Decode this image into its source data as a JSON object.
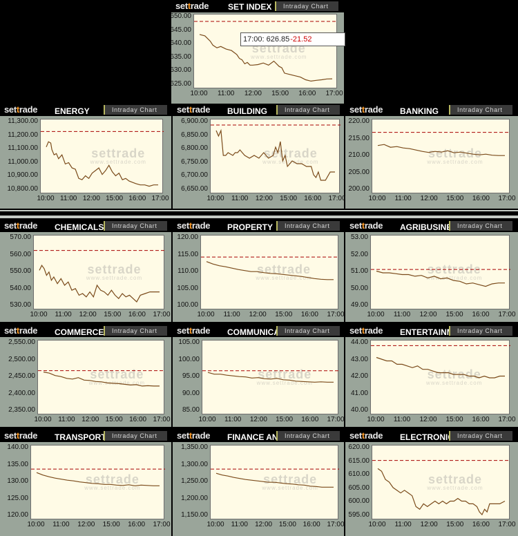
{
  "brand": {
    "prefix": "set",
    "accent": "t",
    "suffix": "rade"
  },
  "intraday_label": "Intraday Chart",
  "watermark": {
    "logo": "settrade",
    "site": "www.settrade.com"
  },
  "colors": {
    "line": "#7a4a1a",
    "ref": "#a80000",
    "accent": "#ff9d2a"
  },
  "tooltip": {
    "time": "17:00:",
    "value": "626.85",
    "change": "-21.52"
  },
  "charts": [
    {
      "id": "set-index",
      "title": "SET INDEX",
      "yticks": [
        "650.00",
        "645.00",
        "640.00",
        "635.00",
        "630.00",
        "625.00"
      ],
      "xticks": [
        "10:00",
        "11:00",
        "12:00",
        "15:00",
        "16:00",
        "17:00"
      ],
      "chart_data": {
        "type": "line",
        "ylim": [
          623,
          651
        ],
        "ref": 648.4,
        "x": [
          0,
          0.04,
          0.08,
          0.1,
          0.13,
          0.16,
          0.2,
          0.24,
          0.28,
          0.3,
          0.32,
          0.34,
          0.36,
          0.38,
          0.4,
          0.44,
          0.48,
          0.52,
          0.56,
          0.6,
          0.62,
          0.64,
          0.68,
          0.72,
          0.76,
          0.8,
          0.84,
          0.88,
          0.92,
          0.96,
          1
        ],
        "y": [
          643.5,
          643,
          641,
          639.5,
          638.5,
          639,
          638,
          637.5,
          636,
          634.5,
          634,
          632.5,
          633,
          632,
          632,
          632.2,
          632.8,
          632,
          633.5,
          631.5,
          631,
          629,
          628.5,
          628,
          627.5,
          626.5,
          626,
          626.3,
          626.5,
          626.8,
          626.85
        ]
      }
    },
    {
      "id": "energy",
      "title": "ENERGY",
      "yticks": [
        "11,300.00",
        "11,200.00",
        "11,100.00",
        "11,000.00",
        "10,900.00",
        "10,800.00"
      ],
      "xticks": [
        "10:00",
        "11:00",
        "12:00",
        "15:00",
        "16:00",
        "17:00"
      ],
      "chart_data": {
        "type": "line",
        "ylim": [
          10760,
          11330
        ],
        "ref": 11238,
        "x": [
          0,
          0.02,
          0.04,
          0.05,
          0.07,
          0.09,
          0.11,
          0.14,
          0.17,
          0.2,
          0.23,
          0.26,
          0.29,
          0.32,
          0.35,
          0.38,
          0.41,
          0.44,
          0.47,
          0.5,
          0.53,
          0.56,
          0.59,
          0.62,
          0.65,
          0.68,
          0.71,
          0.74,
          0.77,
          0.8,
          0.84,
          0.88,
          0.92,
          0.96,
          1
        ],
        "y": [
          11120,
          11160,
          11150,
          11100,
          11060,
          11070,
          11030,
          11060,
          10990,
          11000,
          10960,
          10950,
          10880,
          10870,
          10900,
          10880,
          10920,
          10940,
          10960,
          10910,
          10940,
          10980,
          10930,
          10900,
          10920,
          10870,
          10880,
          10860,
          10850,
          10840,
          10830,
          10830,
          10820,
          10830,
          10830
        ]
      }
    },
    {
      "id": "building",
      "title": "BUILDING",
      "yticks": [
        "6,900.00",
        "6,850.00",
        "6,800.00",
        "6,750.00",
        "6,700.00",
        "6,650.00"
      ],
      "xticks": [
        "10:00",
        "11:00",
        "12:00",
        "15:00",
        "16:00",
        "17:00"
      ],
      "chart_data": {
        "type": "line",
        "ylim": [
          6640,
          6910
        ],
        "ref": 6890,
        "x": [
          0,
          0.02,
          0.04,
          0.06,
          0.08,
          0.1,
          0.12,
          0.14,
          0.16,
          0.18,
          0.2,
          0.22,
          0.24,
          0.28,
          0.32,
          0.36,
          0.4,
          0.44,
          0.48,
          0.5,
          0.52,
          0.54,
          0.56,
          0.58,
          0.6,
          0.64,
          0.68,
          0.72,
          0.76,
          0.8,
          0.82,
          0.84,
          0.86,
          0.88,
          0.92,
          0.96,
          1
        ],
        "y": [
          6870,
          6850,
          6870,
          6780,
          6780,
          6790,
          6785,
          6780,
          6790,
          6790,
          6800,
          6790,
          6780,
          6770,
          6780,
          6770,
          6790,
          6770,
          6780,
          6810,
          6790,
          6830,
          6760,
          6780,
          6740,
          6760,
          6750,
          6750,
          6740,
          6740,
          6710,
          6700,
          6720,
          6690,
          6690,
          6720,
          6720
        ]
      }
    },
    {
      "id": "banking",
      "title": "BANKING",
      "yticks": [
        "220.00",
        "215.00",
        "210.00",
        "205.00",
        "200.00"
      ],
      "xticks": [
        "10:00",
        "11:00",
        "12:00",
        "15:00",
        "16:00",
        "17:00"
      ],
      "chart_data": {
        "type": "line",
        "ylim": [
          199.5,
          221
        ],
        "ref": 217.3,
        "x": [
          0,
          0.05,
          0.1,
          0.15,
          0.2,
          0.25,
          0.3,
          0.35,
          0.4,
          0.45,
          0.5,
          0.55,
          0.6,
          0.65,
          0.7,
          0.75,
          0.8,
          0.85,
          0.9,
          0.95,
          1
        ],
        "y": [
          213.5,
          213.8,
          213,
          213.2,
          212.8,
          212.6,
          212.2,
          211.8,
          211.5,
          211.8,
          211.6,
          212,
          211.4,
          211.6,
          211.3,
          211.0,
          210.8,
          211.0,
          210.7,
          210.6,
          210.6
        ]
      }
    },
    {
      "id": "chemicals",
      "title": "CHEMICALS",
      "yticks": [
        "570.00",
        "560.00",
        "550.00",
        "540.00",
        "530.00"
      ],
      "xticks": [
        "10:00",
        "11:00",
        "12:00",
        "15:00",
        "16:00",
        "17:00"
      ],
      "chart_data": {
        "type": "line",
        "ylim": [
          528,
          573
        ],
        "ref": 564,
        "x": [
          0,
          0.02,
          0.04,
          0.06,
          0.08,
          0.1,
          0.12,
          0.15,
          0.18,
          0.21,
          0.24,
          0.27,
          0.3,
          0.33,
          0.36,
          0.39,
          0.42,
          0.45,
          0.48,
          0.51,
          0.54,
          0.57,
          0.6,
          0.63,
          0.66,
          0.69,
          0.72,
          0.75,
          0.78,
          0.81,
          0.84,
          0.88,
          0.92,
          0.96,
          1
        ],
        "y": [
          552,
          555,
          553,
          549,
          551,
          546,
          548,
          544,
          547,
          543,
          545,
          540,
          541,
          537,
          538,
          536,
          539,
          536,
          543,
          540,
          539,
          537,
          540,
          537,
          535,
          538,
          536,
          537,
          535,
          533,
          537,
          538,
          539,
          539,
          539
        ]
      }
    },
    {
      "id": "property",
      "title": "PROPERTY",
      "yticks": [
        "120.00",
        "115.00",
        "110.00",
        "105.00",
        "100.00"
      ],
      "xticks": [
        "10:00",
        "11:00",
        "12:00",
        "15:00",
        "16:00",
        "17:00"
      ],
      "chart_data": {
        "type": "line",
        "ylim": [
          99.5,
          121
        ],
        "ref": 114.8,
        "x": [
          0,
          0.05,
          0.1,
          0.15,
          0.2,
          0.25,
          0.3,
          0.35,
          0.4,
          0.45,
          0.5,
          0.55,
          0.6,
          0.65,
          0.7,
          0.75,
          0.8,
          0.85,
          0.9,
          0.95,
          1
        ],
        "y": [
          113.5,
          112.8,
          112.3,
          112,
          111.6,
          111.2,
          110.9,
          110.6,
          110.6,
          110.3,
          110.1,
          110,
          109.8,
          109.6,
          109.4,
          109.2,
          108.9,
          108.6,
          108.4,
          108.3,
          108.3
        ]
      }
    },
    {
      "id": "agribusiness",
      "title": "AGRIBUSINESS",
      "yticks": [
        "53.00",
        "52.00",
        "51.00",
        "50.00",
        "49.00"
      ],
      "xticks": [
        "10:00",
        "11:00",
        "12:00",
        "15:00",
        "16:00",
        "17:00"
      ],
      "chart_data": {
        "type": "line",
        "ylim": [
          48.8,
          53.2
        ],
        "ref": 51.2,
        "x": [
          0,
          0.05,
          0.1,
          0.15,
          0.2,
          0.25,
          0.3,
          0.35,
          0.4,
          0.45,
          0.5,
          0.55,
          0.6,
          0.65,
          0.7,
          0.75,
          0.8,
          0.85,
          0.9,
          0.95,
          1
        ],
        "y": [
          51.1,
          51,
          51,
          50.95,
          50.9,
          50.9,
          50.8,
          50.85,
          50.7,
          50.8,
          50.65,
          50.7,
          50.55,
          50.5,
          50.35,
          50.4,
          50.3,
          50.2,
          50.35,
          50.4,
          50.4
        ]
      }
    },
    {
      "id": "commerce",
      "title": "COMMERCE",
      "yticks": [
        "2,550.00",
        "2,500.00",
        "2,450.00",
        "2,400.00",
        "2,350.00"
      ],
      "xticks": [
        "10:00",
        "11:00",
        "12:00",
        "15:00",
        "16:00",
        "17:00"
      ],
      "chart_data": {
        "type": "line",
        "ylim": [
          2345,
          2558
        ],
        "ref": 2472,
        "x": [
          0,
          0.05,
          0.1,
          0.15,
          0.2,
          0.25,
          0.3,
          0.35,
          0.4,
          0.45,
          0.5,
          0.55,
          0.6,
          0.65,
          0.7,
          0.75,
          0.8,
          0.85,
          0.9,
          0.95,
          1
        ],
        "y": [
          2468,
          2465,
          2458,
          2455,
          2450,
          2448,
          2452,
          2445,
          2444,
          2441,
          2440,
          2437,
          2436,
          2435,
          2433,
          2431,
          2432,
          2428,
          2429,
          2428,
          2428
        ]
      }
    },
    {
      "id": "communication",
      "title": "COMMUNICATION",
      "yticks": [
        "105.00",
        "100.00",
        "95.00",
        "90.00",
        "85.00"
      ],
      "xticks": [
        "10:00",
        "11:00",
        "12:00",
        "15:00",
        "16:00",
        "17:00"
      ],
      "chart_data": {
        "type": "line",
        "ylim": [
          84.5,
          106
        ],
        "ref": 97.3,
        "x": [
          0,
          0.05,
          0.1,
          0.15,
          0.2,
          0.25,
          0.3,
          0.35,
          0.4,
          0.45,
          0.5,
          0.55,
          0.6,
          0.65,
          0.7,
          0.75,
          0.8,
          0.85,
          0.9,
          0.95,
          1
        ],
        "y": [
          96.8,
          96.3,
          96.3,
          96,
          95.8,
          95.6,
          95.5,
          95.2,
          95.3,
          95,
          94.9,
          95.1,
          94.7,
          94.6,
          94.3,
          94.2,
          94.1,
          94.0,
          94.1,
          94.0,
          94.0
        ]
      }
    },
    {
      "id": "entertainment",
      "title": "ENTERTAINMENT",
      "yticks": [
        "44.00",
        "43.00",
        "42.00",
        "41.00",
        "40.00"
      ],
      "xticks": [
        "10:00",
        "11:00",
        "12:00",
        "15:00",
        "16:00",
        "17:00"
      ],
      "chart_data": {
        "type": "line",
        "ylim": [
          39.8,
          44.2
        ],
        "ref": 43.9,
        "x": [
          0,
          0.04,
          0.08,
          0.12,
          0.16,
          0.2,
          0.24,
          0.28,
          0.32,
          0.36,
          0.4,
          0.44,
          0.48,
          0.52,
          0.56,
          0.6,
          0.64,
          0.68,
          0.72,
          0.76,
          0.8,
          0.84,
          0.88,
          0.92,
          0.96,
          1
        ],
        "y": [
          43.2,
          43.1,
          43.0,
          43.0,
          42.8,
          42.8,
          42.7,
          42.6,
          42.7,
          42.5,
          42.5,
          42.4,
          42.3,
          42.3,
          42.3,
          42.2,
          42.2,
          42.2,
          42.1,
          42.1,
          42.0,
          42.1,
          42.0,
          42.0,
          42.1,
          42.1
        ]
      }
    },
    {
      "id": "transportation",
      "title": "TRANSPORTATION",
      "yticks": [
        "140.00",
        "135.00",
        "130.00",
        "125.00",
        "120.00"
      ],
      "xticks": [
        "10:00",
        "11:00",
        "12:00",
        "15:00",
        "16:00",
        "17:00"
      ],
      "chart_data": {
        "type": "line",
        "ylim": [
          119.5,
          141
        ],
        "ref": 134.2,
        "x": [
          0,
          0.05,
          0.1,
          0.15,
          0.2,
          0.25,
          0.3,
          0.35,
          0.4,
          0.45,
          0.5,
          0.55,
          0.6,
          0.65,
          0.7,
          0.75,
          0.8,
          0.85,
          0.9,
          0.95,
          1
        ],
        "y": [
          133.2,
          132.5,
          132,
          131.6,
          131.3,
          131,
          130.8,
          130.5,
          130.3,
          130.1,
          130,
          129.8,
          129.8,
          129.6,
          129.5,
          129.7,
          129.4,
          129.6,
          129.5,
          129.4,
          129.4
        ]
      }
    },
    {
      "id": "finance",
      "title": "FINANCE AND SECURITIES",
      "yticks": [
        "1,350.00",
        "1,300.00",
        "1,250.00",
        "1,200.00",
        "1,150.00"
      ],
      "xticks": [
        "10:00",
        "11:00",
        "12:00",
        "15:00",
        "16:00",
        "17:00"
      ],
      "chart_data": {
        "type": "line",
        "ylim": [
          1145,
          1360
        ],
        "ref": 1292,
        "x": [
          0,
          0.05,
          0.1,
          0.15,
          0.2,
          0.25,
          0.3,
          0.35,
          0.4,
          0.45,
          0.5,
          0.55,
          0.6,
          0.65,
          0.7,
          0.75,
          0.8,
          0.85,
          0.9,
          0.95,
          1
        ],
        "y": [
          1280,
          1275,
          1272,
          1268,
          1265,
          1262,
          1260,
          1258,
          1256,
          1254,
          1254,
          1252,
          1250,
          1249,
          1247,
          1246,
          1243,
          1242,
          1240,
          1240,
          1240
        ]
      }
    },
    {
      "id": "electronic",
      "title": "ELECTRONIC",
      "yticks": [
        "620.00",
        "615.00",
        "610.00",
        "605.00",
        "600.00",
        "595.00"
      ],
      "xticks": [
        "10:00",
        "11:00",
        "12:00",
        "15:00",
        "16:00",
        "17:00"
      ],
      "chart_data": {
        "type": "line",
        "ylim": [
          594,
          621.5
        ],
        "ref": 616,
        "x": [
          0,
          0.03,
          0.06,
          0.09,
          0.12,
          0.15,
          0.18,
          0.21,
          0.24,
          0.27,
          0.3,
          0.33,
          0.36,
          0.39,
          0.42,
          0.45,
          0.48,
          0.51,
          0.54,
          0.57,
          0.6,
          0.63,
          0.66,
          0.69,
          0.72,
          0.75,
          0.78,
          0.8,
          0.82,
          0.84,
          0.86,
          0.88,
          0.92,
          0.96,
          1
        ],
        "y": [
          613,
          612,
          609,
          608,
          606,
          605,
          604,
          605,
          604,
          603,
          599,
          598,
          600,
          599,
          600,
          601,
          600,
          601,
          600,
          601,
          601,
          602,
          601,
          601,
          600,
          600,
          599,
          597,
          596,
          598,
          597,
          600,
          600,
          600,
          601
        ]
      }
    }
  ]
}
